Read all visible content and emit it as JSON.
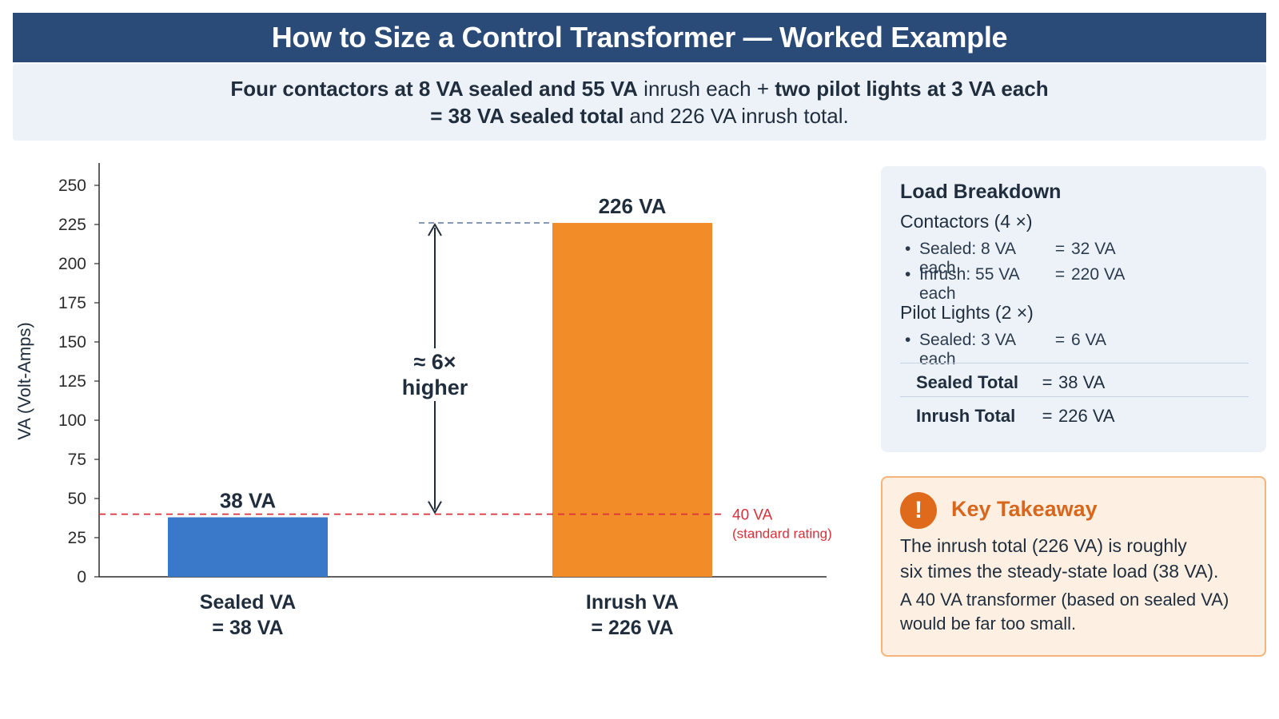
{
  "header": {
    "title": "How to Size a Control Transformer — Worked Example",
    "subtitle_line1_a": "Four contactors at 8 VA sealed and 55 VA",
    "subtitle_line1_b": " inrush each + ",
    "subtitle_line1_c": "two pilot lights at 3 VA each",
    "subtitle_line2_a": "= 38 VA sealed total",
    "subtitle_line2_b": " and 226 VA inrush total."
  },
  "chart_data": {
    "type": "bar",
    "categories": [
      "Sealed VA",
      "Inrush VA"
    ],
    "category_labels": [
      [
        "Sealed VA",
        "= 38 VA"
      ],
      [
        "Inrush VA",
        "= 226 VA"
      ]
    ],
    "values": [
      38,
      226
    ],
    "value_labels": [
      "38 VA",
      "226 VA"
    ],
    "bar_colors": [
      "#3a78c9",
      "#f28c28"
    ],
    "ylabel": "VA (Volt-Amps)",
    "ylim": [
      0,
      250
    ],
    "yticks": [
      0,
      25,
      50,
      75,
      100,
      125,
      150,
      175,
      200,
      225,
      250
    ],
    "reference_line": {
      "value": 40,
      "label": "40 VA",
      "sublabel": "(standard rating)",
      "color": "#d9303a"
    },
    "annotation": {
      "line1": "≈ 6×",
      "line2": "higher"
    },
    "grid": false
  },
  "breakdown": {
    "title": "Load Breakdown",
    "contactors": {
      "head": "Contactors",
      "mult": " (4 ×)",
      "items": [
        {
          "label": "Sealed: 8 VA each",
          "eq": "=",
          "value": "32 VA"
        },
        {
          "label": "Inrush: 55 VA each",
          "eq": "=",
          "value": "220 VA"
        }
      ]
    },
    "pilot": {
      "head": "Pilot Lights",
      "mult": " (2 ×)",
      "items": [
        {
          "label": "Sealed: 3 VA each",
          "eq": "=",
          "value": "6 VA"
        }
      ]
    },
    "totals": [
      {
        "label": "Sealed Total",
        "eq": "=",
        "value": "38 VA"
      },
      {
        "label": "Inrush Total",
        "eq": "=",
        "value": "226 VA"
      }
    ]
  },
  "takeaway": {
    "icon": "exclamation-icon",
    "title": "Key Takeaway",
    "line1": "The inrush total (226 VA) is roughly",
    "line2": "six times the steady-state load (38 VA).",
    "line3": "A 40 VA transformer (based on sealed VA)",
    "line4": "would be far too small."
  },
  "colors": {
    "header_bg": "#2a4a78",
    "sealed_bar": "#3a78c9",
    "inrush_bar": "#f28c28",
    "reference": "#d9303a",
    "takeaway_accent": "#d8661c"
  }
}
